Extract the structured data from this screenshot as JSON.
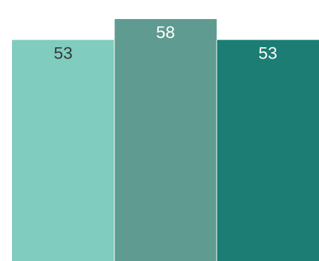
{
  "chart_data": {
    "type": "bar",
    "categories": [
      "",
      "",
      ""
    ],
    "values": [
      53,
      58,
      53
    ],
    "data_labels": [
      "53",
      "58",
      "53"
    ],
    "colors": [
      "#80ccbf",
      "#5f9b91",
      "#1b7d73"
    ],
    "label_colors": [
      "#3a3a3a",
      "#ffffff",
      "#ffffff"
    ],
    "bar_separator_color": "#ffffff",
    "title": "",
    "xlabel": "",
    "ylabel": "",
    "ylim": [
      0,
      58
    ],
    "grid": false,
    "legend": "none"
  }
}
